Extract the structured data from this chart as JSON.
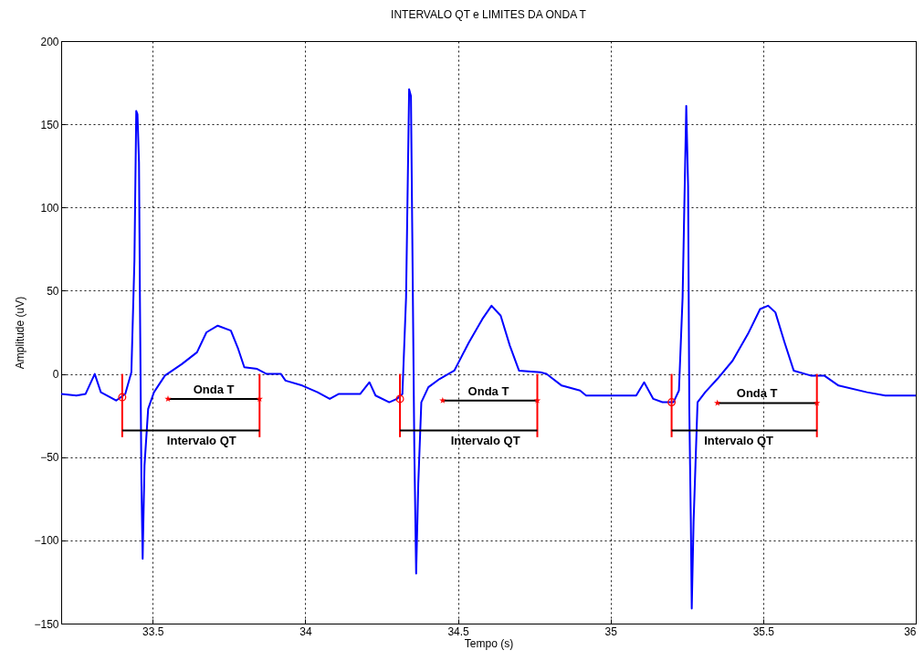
{
  "chart_data": {
    "type": "line",
    "title": "INTERVALO QT e LIMITES DA ONDA T",
    "xlabel": "Tempo (s)",
    "ylabel": "Amplitude (uV)",
    "xlim": [
      33.2,
      36
    ],
    "ylim": [
      -150,
      200
    ],
    "xticks": [
      33.5,
      34,
      34.5,
      35,
      35.5,
      36
    ],
    "yticks": [
      -150,
      -100,
      -50,
      0,
      50,
      100,
      150,
      200
    ],
    "grid": true,
    "series": [
      {
        "color": "#0000ff",
        "line_style": "solid",
        "x": [
          33.2,
          33.25,
          33.28,
          33.31,
          33.33,
          33.38,
          33.41,
          33.43,
          33.44,
          33.446,
          33.45,
          33.455,
          33.458,
          33.463,
          33.467,
          33.473,
          33.485,
          33.504,
          33.54,
          33.596,
          33.645,
          33.676,
          33.713,
          33.756,
          33.78,
          33.8,
          33.842,
          33.873,
          33.92,
          33.935,
          33.99,
          34.04,
          34.08,
          34.11,
          34.18,
          34.21,
          34.23,
          34.275,
          34.3,
          34.318,
          34.33,
          34.34,
          34.346,
          34.35,
          34.357,
          34.363,
          34.37,
          34.38,
          34.403,
          34.44,
          34.488,
          34.536,
          34.58,
          34.61,
          34.64,
          34.67,
          34.7,
          34.77,
          34.79,
          34.84,
          34.9,
          34.92,
          35.06,
          35.084,
          35.11,
          35.14,
          35.17,
          35.206,
          35.224,
          35.236,
          35.248,
          35.254,
          35.258,
          35.263,
          35.266,
          35.272,
          35.285,
          35.31,
          35.35,
          35.4,
          35.45,
          35.49,
          35.516,
          35.54,
          35.57,
          35.6,
          35.656,
          35.7,
          35.747,
          35.84,
          35.9,
          36
        ],
        "values": [
          -12,
          -13,
          -12,
          0,
          -11,
          -16,
          -12,
          1,
          68,
          158,
          156,
          127,
          46,
          -66,
          -111,
          -55,
          -21,
          -11,
          -1,
          6,
          13,
          25,
          29,
          26,
          15,
          4,
          3,
          0,
          0,
          -4,
          -7,
          -11,
          -15,
          -12,
          -12,
          -5,
          -13,
          -17,
          -15,
          -12,
          46,
          171,
          167,
          91,
          -44,
          -120,
          -66,
          -17,
          -8,
          -3,
          2,
          19,
          33,
          41,
          35,
          17,
          2,
          1,
          0,
          -7,
          -10,
          -13,
          -13,
          -13,
          -5,
          -15,
          -17,
          -17,
          -10,
          46,
          161,
          113,
          -21,
          -89,
          -141,
          -89,
          -17,
          -11,
          -3,
          8,
          24,
          39,
          41,
          37,
          19,
          2,
          -1,
          -1,
          -7,
          -11,
          -13,
          -13
        ]
      },
      {
        "type": "line",
        "color": "#ff0000",
        "line_style": "solid",
        "x": [
          33.4,
          33.4,
          33.6,
          33.85,
          33.85,
          34.0,
          34.31,
          34.31,
          34.5,
          34.76,
          34.76,
          35.0,
          35.2,
          35.2,
          35.4,
          35.676,
          35.676
        ],
        "values": [
          0,
          -38,
          null,
          0,
          -38,
          null,
          0,
          -38,
          null,
          0,
          -38,
          null,
          0,
          -38,
          null,
          0,
          -38
        ]
      },
      {
        "type": "line",
        "color": "#000000",
        "line_style": "solid",
        "x": [
          33.4,
          33.85,
          34.0,
          34.31,
          34.76,
          35.0,
          35.2,
          35.676
        ],
        "values": [
          -34,
          -34,
          null,
          -34,
          -34,
          null,
          -34,
          -34
        ]
      },
      {
        "type": "line",
        "color": "#000000",
        "line_style": "solid",
        "x": [
          33.55,
          33.85,
          34.0,
          34.45,
          34.76,
          35.0,
          35.35,
          35.676
        ],
        "values": [
          -15,
          -15,
          null,
          -16,
          -16,
          null,
          -17.5,
          -17.5
        ]
      },
      {
        "type": "scatter",
        "color": "#ff0000",
        "marker": "star",
        "x": [
          33.55,
          33.85,
          34.45,
          34.76,
          35.35,
          35.676
        ],
        "values": [
          -15,
          -15,
          -16,
          -16,
          -17.5,
          -17.5
        ]
      },
      {
        "type": "scatter",
        "color": "#ff0000",
        "marker": "circle",
        "x": [
          33.4,
          34.31,
          35.2
        ],
        "values": [
          -14,
          -15,
          -17
        ]
      }
    ],
    "annotations": [
      {
        "text": "Onda T",
        "x": 33.7,
        "y": -15
      },
      {
        "text": "Intervalo QT",
        "x": 33.66,
        "y": -34
      },
      {
        "text": "Onda T",
        "x": 34.6,
        "y": -16
      },
      {
        "text": "Intervalo QT",
        "x": 34.59,
        "y": -34
      },
      {
        "text": "Onda T",
        "x": 35.48,
        "y": -17.5
      },
      {
        "text": "Intervalo QT",
        "x": 35.42,
        "y": -34
      }
    ]
  }
}
